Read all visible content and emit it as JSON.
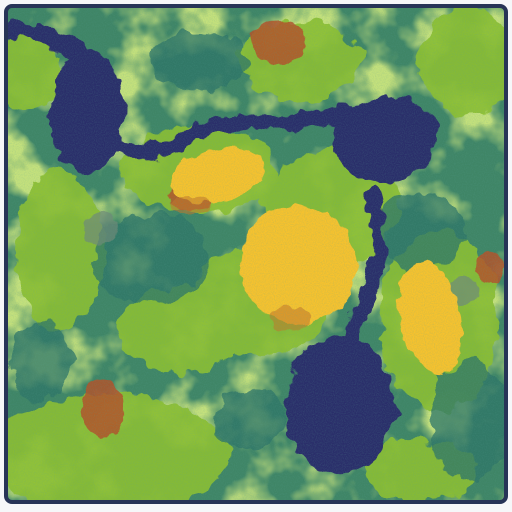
{
  "map": {
    "type": "terrain-tile",
    "colors": {
      "deep_grass": "#3b7f6b",
      "mid_grass": "#4c9a54",
      "light_grass": "#8fc034",
      "water": "#2c2f6a",
      "sand": "#f5c12e",
      "dirt": "#b0522a",
      "rock": "#6f8a7a",
      "border": "#273457",
      "background": "#f6f7f9"
    },
    "features": {
      "lakes": [
        "lake-northwest",
        "lake-north-east",
        "lake-south"
      ],
      "river": "river",
      "sand_patches": [
        "sand-patch-north",
        "sand-patch-center",
        "sand-patch-east"
      ],
      "dirt_patches": [
        "dirt-patch-top",
        "dirt-patch-left",
        "dirt-patch-southwest",
        "dirt-patch-east-edge"
      ]
    }
  }
}
